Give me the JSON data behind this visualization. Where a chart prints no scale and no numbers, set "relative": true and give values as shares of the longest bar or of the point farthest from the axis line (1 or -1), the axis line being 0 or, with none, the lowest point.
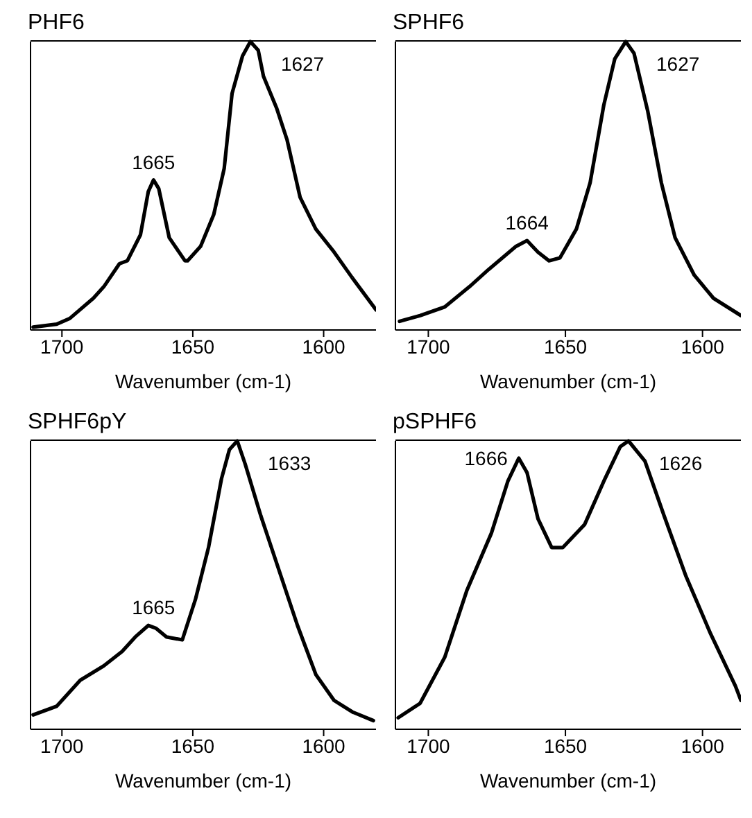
{
  "chart_data": [
    {
      "type": "line",
      "title": "PHF6",
      "xlabel": "Wavenumber (cm-1)",
      "relative": true,
      "xlim": [
        1712,
        1580
      ],
      "xticks": [
        1700,
        1650,
        1600
      ],
      "marker": "none",
      "line_style": "solid",
      "grid": false,
      "series": [
        {
          "color": "#000000",
          "x": [
            1711,
            1702,
            1697,
            1688,
            1684,
            1678,
            1675,
            1670,
            1667,
            1665,
            1663,
            1659,
            1653,
            1652,
            1647,
            1642,
            1638,
            1635,
            1631,
            1628,
            1625,
            1623,
            1618,
            1614,
            1609,
            1603,
            1596,
            1589,
            1580
          ],
          "values": [
            0.01,
            0.02,
            0.04,
            0.11,
            0.15,
            0.23,
            0.24,
            0.33,
            0.48,
            0.52,
            0.49,
            0.32,
            0.24,
            0.24,
            0.29,
            0.4,
            0.56,
            0.82,
            0.95,
            1.0,
            0.97,
            0.88,
            0.77,
            0.66,
            0.46,
            0.35,
            0.27,
            0.18,
            0.07
          ]
        }
      ],
      "annotations": [
        {
          "text": "1665",
          "x": 1665,
          "y": 0.52
        },
        {
          "text": "1627",
          "x": 1628,
          "y": 1.0
        }
      ]
    },
    {
      "type": "line",
      "title": "SPHF6",
      "xlabel": "Wavenumber (cm-1)",
      "relative": true,
      "xlim": [
        1712,
        1586
      ],
      "xticks": [
        1700,
        1650,
        1600
      ],
      "marker": "none",
      "line_style": "solid",
      "grid": false,
      "series": [
        {
          "color": "#000000",
          "x": [
            1710.5,
            1703,
            1694,
            1685,
            1678,
            1673,
            1668,
            1664,
            1660,
            1656,
            1652,
            1646,
            1641,
            1636,
            1632,
            1628,
            1625,
            1620,
            1615,
            1610,
            1603,
            1596,
            1586
          ],
          "values": [
            0.03,
            0.05,
            0.08,
            0.15,
            0.21,
            0.25,
            0.29,
            0.31,
            0.27,
            0.24,
            0.25,
            0.35,
            0.51,
            0.78,
            0.94,
            1.0,
            0.96,
            0.76,
            0.51,
            0.32,
            0.19,
            0.11,
            0.05
          ]
        }
      ],
      "annotations": [
        {
          "text": "1664",
          "x": 1664,
          "y": 0.31
        },
        {
          "text": "1627",
          "x": 1628,
          "y": 1.0
        }
      ]
    },
    {
      "type": "line",
      "title": "SPHF6pY",
      "xlabel": "Wavenumber (cm-1)",
      "relative": true,
      "xlim": [
        1712,
        1580
      ],
      "xticks": [
        1700,
        1650,
        1600
      ],
      "marker": "none",
      "line_style": "solid",
      "grid": false,
      "series": [
        {
          "color": "#000000",
          "x": [
            1711,
            1702,
            1693,
            1684,
            1677,
            1672,
            1667,
            1664,
            1660,
            1654,
            1649,
            1644,
            1639,
            1636,
            1633,
            1630,
            1624,
            1617,
            1610,
            1603,
            1596,
            1589,
            1581
          ],
          "values": [
            0.05,
            0.08,
            0.17,
            0.22,
            0.27,
            0.32,
            0.36,
            0.35,
            0.32,
            0.31,
            0.45,
            0.63,
            0.87,
            0.97,
            1.0,
            0.92,
            0.74,
            0.55,
            0.36,
            0.19,
            0.1,
            0.06,
            0.03
          ]
        }
      ],
      "annotations": [
        {
          "text": "1665",
          "x": 1665,
          "y": 0.36
        },
        {
          "text": "1633",
          "x": 1633,
          "y": 1.0
        }
      ]
    },
    {
      "type": "line",
      "title": "pSPHF6",
      "xlabel": "Wavenumber (cm-1)",
      "relative": true,
      "xlim": [
        1712,
        1586
      ],
      "xticks": [
        1700,
        1650,
        1600
      ],
      "marker": "none",
      "line_style": "solid",
      "grid": false,
      "series": [
        {
          "color": "#000000",
          "x": [
            1711,
            1703,
            1694,
            1686,
            1677,
            1671,
            1667,
            1664,
            1660,
            1655,
            1651,
            1643,
            1636,
            1630,
            1627,
            1621,
            1614,
            1606,
            1597,
            1588,
            1586
          ],
          "values": [
            0.04,
            0.09,
            0.25,
            0.48,
            0.68,
            0.86,
            0.94,
            0.89,
            0.73,
            0.63,
            0.63,
            0.71,
            0.86,
            0.98,
            1.0,
            0.93,
            0.74,
            0.53,
            0.33,
            0.15,
            0.1
          ]
        }
      ],
      "annotations": [
        {
          "text": "1666",
          "x": 1667,
          "y": 0.94
        },
        {
          "text": "1626",
          "x": 1627,
          "y": 1.0
        }
      ]
    }
  ]
}
